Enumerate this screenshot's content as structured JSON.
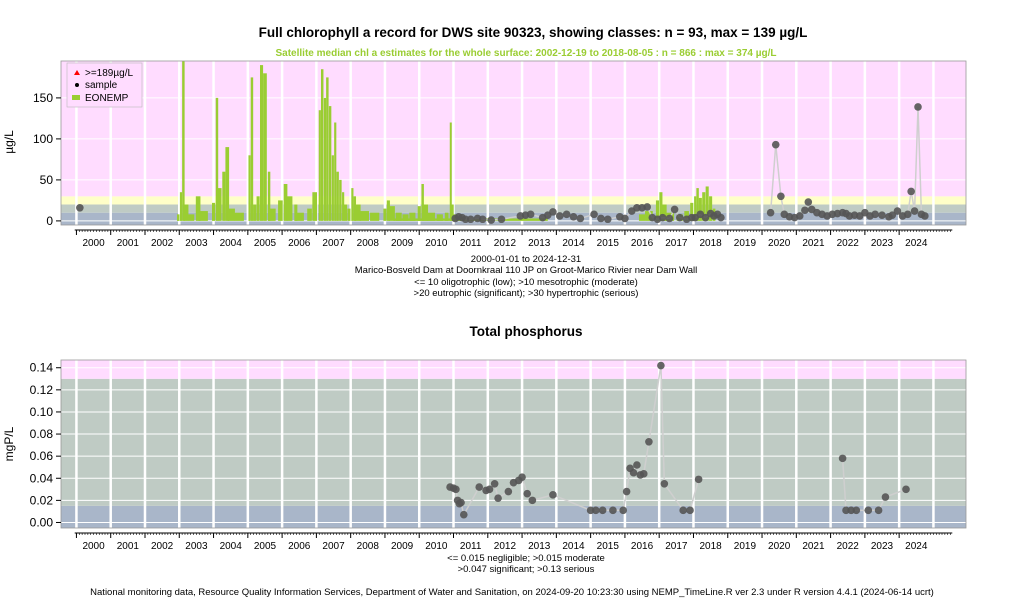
{
  "colors": {
    "hypertrophic": "#ffdcff",
    "eutrophic": "#ffffc8",
    "mesotrophic": "#bfcbc4",
    "oligotrophic": "#a9b6c9",
    "satellite": "#9acd32",
    "sample": "#555555",
    "sample_line": "#cfcfcf",
    "over_max": "#ff0000",
    "grid": "#ffffff"
  },
  "footer": "National monitoring data, Resource Quality Information Services, Department of Water and Sanitation, on 2024-09-20 10:23:30 using NEMP_TimeLine.R ver 2.3 under R version 4.4.1 (2024-06-14 ucrt)",
  "chart_data": [
    {
      "type": "scatter",
      "title": "Full chlorophyll a record for DWS site 90323, showing classes: n = 93, max = 139 µg/L",
      "subtitle": "Satellite median chl a estimates for the whole surface: 2002-12-19 to 2018-08-05 : n = 866 : max = 374 µg/L",
      "ylabel": "µg/L",
      "ylim": [
        -5,
        195
      ],
      "xlim": [
        1999.55,
        2025.95
      ],
      "yticks": [
        0,
        50,
        100,
        150
      ],
      "xticks": [
        "2000",
        "2001",
        "2002",
        "2003",
        "2004",
        "2005",
        "2006",
        "2007",
        "2008",
        "2009",
        "2010",
        "2011",
        "2012",
        "2013",
        "2014",
        "2015",
        "2016",
        "2017",
        "2018",
        "2019",
        "2020",
        "2021",
        "2022",
        "2023",
        "2024"
      ],
      "class_bands": [
        {
          "from": -5,
          "to": 10,
          "class": "oligotrophic"
        },
        {
          "from": 10,
          "to": 20,
          "class": "mesotrophic"
        },
        {
          "from": 20,
          "to": 30,
          "class": "eutrophic"
        },
        {
          "from": 30,
          "to": 195,
          "class": "hypertrophic"
        }
      ],
      "legend": {
        "position": "top-left",
        "entries": [
          ">=189µg/L",
          "sample",
          "EONEMP"
        ]
      },
      "notes": [
        "2000-01-01 to 2024-12-31",
        "Marico-Bosveld Dam at Doornkraal 110 JP on Groot-Marico Rivier near Dam Wall",
        "<= 10 oligotrophic (low); >10 mesotrophic (moderate)",
        ">20 eutrophic (significant); >30 hypertrophic (serious)"
      ],
      "satellite_peaks": [
        {
          "x": 2002.97,
          "y": 8
        },
        {
          "x": 2003.05,
          "y": 35
        },
        {
          "x": 2003.12,
          "y": 195
        },
        {
          "x": 2003.2,
          "y": 20
        },
        {
          "x": 2003.35,
          "y": 8
        },
        {
          "x": 2003.55,
          "y": 30
        },
        {
          "x": 2003.7,
          "y": 12
        },
        {
          "x": 2004.0,
          "y": 22
        },
        {
          "x": 2004.1,
          "y": 150
        },
        {
          "x": 2004.18,
          "y": 40
        },
        {
          "x": 2004.3,
          "y": 60
        },
        {
          "x": 2004.4,
          "y": 90
        },
        {
          "x": 2004.52,
          "y": 15
        },
        {
          "x": 2004.75,
          "y": 10
        },
        {
          "x": 2005.05,
          "y": 80
        },
        {
          "x": 2005.12,
          "y": 175
        },
        {
          "x": 2005.2,
          "y": 20
        },
        {
          "x": 2005.3,
          "y": 30
        },
        {
          "x": 2005.4,
          "y": 190
        },
        {
          "x": 2005.5,
          "y": 180
        },
        {
          "x": 2005.62,
          "y": 60
        },
        {
          "x": 2005.7,
          "y": 15
        },
        {
          "x": 2005.95,
          "y": 25
        },
        {
          "x": 2006.1,
          "y": 45
        },
        {
          "x": 2006.22,
          "y": 30
        },
        {
          "x": 2006.4,
          "y": 20
        },
        {
          "x": 2006.5,
          "y": 10
        },
        {
          "x": 2006.8,
          "y": 15
        },
        {
          "x": 2006.95,
          "y": 35
        },
        {
          "x": 2007.1,
          "y": 135
        },
        {
          "x": 2007.17,
          "y": 185
        },
        {
          "x": 2007.25,
          "y": 150
        },
        {
          "x": 2007.32,
          "y": 175
        },
        {
          "x": 2007.4,
          "y": 140
        },
        {
          "x": 2007.48,
          "y": 80
        },
        {
          "x": 2007.55,
          "y": 120
        },
        {
          "x": 2007.62,
          "y": 60
        },
        {
          "x": 2007.7,
          "y": 50
        },
        {
          "x": 2007.78,
          "y": 35
        },
        {
          "x": 2007.85,
          "y": 20
        },
        {
          "x": 2007.95,
          "y": 15
        },
        {
          "x": 2008.05,
          "y": 40
        },
        {
          "x": 2008.12,
          "y": 30
        },
        {
          "x": 2008.2,
          "y": 20
        },
        {
          "x": 2008.4,
          "y": 12
        },
        {
          "x": 2008.7,
          "y": 10
        },
        {
          "x": 2009.0,
          "y": 15
        },
        {
          "x": 2009.1,
          "y": 25
        },
        {
          "x": 2009.2,
          "y": 18
        },
        {
          "x": 2009.4,
          "y": 10
        },
        {
          "x": 2009.6,
          "y": 8
        },
        {
          "x": 2009.8,
          "y": 10
        },
        {
          "x": 2010.0,
          "y": 18
        },
        {
          "x": 2010.1,
          "y": 45
        },
        {
          "x": 2010.18,
          "y": 20
        },
        {
          "x": 2010.35,
          "y": 10
        },
        {
          "x": 2010.6,
          "y": 8
        },
        {
          "x": 2010.8,
          "y": 10
        },
        {
          "x": 2010.92,
          "y": 120
        },
        {
          "x": 2010.97,
          "y": 20
        },
        {
          "x": 2011.05,
          "y": 8
        },
        {
          "x": 2011.2,
          "y": 5
        },
        {
          "x": 2011.5,
          "y": 3
        },
        {
          "x": 2016.5,
          "y": 8
        },
        {
          "x": 2016.7,
          "y": 12
        },
        {
          "x": 2016.95,
          "y": 25
        },
        {
          "x": 2017.05,
          "y": 35
        },
        {
          "x": 2017.15,
          "y": 20
        },
        {
          "x": 2017.3,
          "y": 10
        },
        {
          "x": 2017.6,
          "y": 8
        },
        {
          "x": 2017.8,
          "y": 12
        },
        {
          "x": 2017.95,
          "y": 22
        },
        {
          "x": 2018.05,
          "y": 30
        },
        {
          "x": 2018.12,
          "y": 40
        },
        {
          "x": 2018.2,
          "y": 28
        },
        {
          "x": 2018.3,
          "y": 35
        },
        {
          "x": 2018.4,
          "y": 42
        },
        {
          "x": 2018.5,
          "y": 30
        },
        {
          "x": 2018.6,
          "y": 15
        }
      ],
      "samples": [
        {
          "x": 2000.1,
          "y": 16
        },
        {
          "x": 2011.05,
          "y": 3
        },
        {
          "x": 2011.15,
          "y": 5
        },
        {
          "x": 2011.25,
          "y": 4
        },
        {
          "x": 2011.35,
          "y": 2
        },
        {
          "x": 2011.5,
          "y": 2
        },
        {
          "x": 2011.7,
          "y": 3
        },
        {
          "x": 2011.85,
          "y": 2
        },
        {
          "x": 2012.1,
          "y": 1
        },
        {
          "x": 2012.4,
          "y": 2
        },
        {
          "x": 2012.95,
          "y": 6
        },
        {
          "x": 2013.1,
          "y": 7
        },
        {
          "x": 2013.25,
          "y": 8
        },
        {
          "x": 2013.6,
          "y": 4
        },
        {
          "x": 2013.75,
          "y": 7
        },
        {
          "x": 2013.9,
          "y": 11
        },
        {
          "x": 2014.1,
          "y": 6
        },
        {
          "x": 2014.3,
          "y": 8
        },
        {
          "x": 2014.5,
          "y": 5
        },
        {
          "x": 2014.7,
          "y": 3
        },
        {
          "x": 2015.1,
          "y": 8
        },
        {
          "x": 2015.3,
          "y": 3
        },
        {
          "x": 2015.5,
          "y": 2
        },
        {
          "x": 2015.85,
          "y": 5
        },
        {
          "x": 2016.0,
          "y": 3
        },
        {
          "x": 2016.2,
          "y": 12
        },
        {
          "x": 2016.35,
          "y": 16
        },
        {
          "x": 2016.5,
          "y": 16
        },
        {
          "x": 2016.65,
          "y": 17
        },
        {
          "x": 2016.8,
          "y": 4
        },
        {
          "x": 2016.95,
          "y": 2
        },
        {
          "x": 2017.1,
          "y": 4
        },
        {
          "x": 2017.3,
          "y": 3
        },
        {
          "x": 2017.45,
          "y": 14
        },
        {
          "x": 2017.6,
          "y": 4
        },
        {
          "x": 2017.8,
          "y": 2
        },
        {
          "x": 2017.95,
          "y": 4
        },
        {
          "x": 2018.05,
          "y": 4
        },
        {
          "x": 2018.2,
          "y": 8
        },
        {
          "x": 2018.35,
          "y": 4
        },
        {
          "x": 2018.5,
          "y": 9
        },
        {
          "x": 2018.6,
          "y": 6
        },
        {
          "x": 2018.7,
          "y": 8
        },
        {
          "x": 2018.8,
          "y": 4
        },
        {
          "x": 2020.25,
          "y": 10
        },
        {
          "x": 2020.4,
          "y": 93
        },
        {
          "x": 2020.55,
          "y": 30
        },
        {
          "x": 2020.65,
          "y": 8
        },
        {
          "x": 2020.8,
          "y": 5
        },
        {
          "x": 2020.95,
          "y": 4
        },
        {
          "x": 2021.1,
          "y": 6
        },
        {
          "x": 2021.25,
          "y": 13
        },
        {
          "x": 2021.35,
          "y": 23
        },
        {
          "x": 2021.45,
          "y": 14
        },
        {
          "x": 2021.6,
          "y": 10
        },
        {
          "x": 2021.75,
          "y": 8
        },
        {
          "x": 2021.9,
          "y": 6
        },
        {
          "x": 2022.05,
          "y": 8
        },
        {
          "x": 2022.2,
          "y": 9
        },
        {
          "x": 2022.35,
          "y": 10
        },
        {
          "x": 2022.45,
          "y": 9
        },
        {
          "x": 2022.55,
          "y": 6
        },
        {
          "x": 2022.7,
          "y": 7
        },
        {
          "x": 2022.85,
          "y": 6
        },
        {
          "x": 2023.0,
          "y": 10
        },
        {
          "x": 2023.15,
          "y": 6
        },
        {
          "x": 2023.3,
          "y": 8
        },
        {
          "x": 2023.5,
          "y": 7
        },
        {
          "x": 2023.7,
          "y": 5
        },
        {
          "x": 2023.8,
          "y": 7
        },
        {
          "x": 2023.95,
          "y": 12
        },
        {
          "x": 2024.1,
          "y": 6
        },
        {
          "x": 2024.25,
          "y": 8
        },
        {
          "x": 2024.35,
          "y": 36
        },
        {
          "x": 2024.45,
          "y": 12
        },
        {
          "x": 2024.55,
          "y": 139
        },
        {
          "x": 2024.65,
          "y": 8
        },
        {
          "x": 2024.75,
          "y": 6
        }
      ]
    },
    {
      "type": "scatter",
      "title": "Total phosphorus",
      "ylabel": "mgP/L",
      "ylim": [
        -0.005,
        0.147
      ],
      "xlim": [
        1999.55,
        2025.95
      ],
      "yticks": [
        "0.00",
        "0.02",
        "0.04",
        "0.06",
        "0.08",
        "0.10",
        "0.12",
        "0.14"
      ],
      "xticks": [
        "2000",
        "2001",
        "2002",
        "2003",
        "2004",
        "2005",
        "2006",
        "2007",
        "2008",
        "2009",
        "2010",
        "2011",
        "2012",
        "2013",
        "2014",
        "2015",
        "2016",
        "2017",
        "2018",
        "2019",
        "2020",
        "2021",
        "2022",
        "2023",
        "2024"
      ],
      "class_bands": [
        {
          "from": -0.005,
          "to": 0.015,
          "class": "oligotrophic"
        },
        {
          "from": 0.015,
          "to": 0.13,
          "class": "mesotrophic"
        },
        {
          "from": 0.13,
          "to": 0.147,
          "class": "hypertrophic"
        }
      ],
      "notes": [
        "<= 0.015 negligible; >0.015 moderate",
        ">0.047 significant; >0.13 serious"
      ],
      "samples": [
        {
          "x": 2010.9,
          "y": 0.032
        },
        {
          "x": 2011.0,
          "y": 0.031
        },
        {
          "x": 2011.07,
          "y": 0.03
        },
        {
          "x": 2011.12,
          "y": 0.02
        },
        {
          "x": 2011.17,
          "y": 0.017
        },
        {
          "x": 2011.22,
          "y": 0.018
        },
        {
          "x": 2011.3,
          "y": 0.007
        },
        {
          "x": 2011.75,
          "y": 0.032
        },
        {
          "x": 2011.95,
          "y": 0.029
        },
        {
          "x": 2012.05,
          "y": 0.03
        },
        {
          "x": 2012.2,
          "y": 0.035
        },
        {
          "x": 2012.3,
          "y": 0.022
        },
        {
          "x": 2012.6,
          "y": 0.028
        },
        {
          "x": 2012.75,
          "y": 0.036
        },
        {
          "x": 2012.9,
          "y": 0.038
        },
        {
          "x": 2013.0,
          "y": 0.041
        },
        {
          "x": 2013.15,
          "y": 0.026
        },
        {
          "x": 2013.3,
          "y": 0.02
        },
        {
          "x": 2013.9,
          "y": 0.025
        },
        {
          "x": 2015.0,
          "y": 0.011
        },
        {
          "x": 2015.15,
          "y": 0.011
        },
        {
          "x": 2015.35,
          "y": 0.011
        },
        {
          "x": 2015.65,
          "y": 0.011
        },
        {
          "x": 2015.95,
          "y": 0.011
        },
        {
          "x": 2016.05,
          "y": 0.028
        },
        {
          "x": 2016.15,
          "y": 0.049
        },
        {
          "x": 2016.25,
          "y": 0.045
        },
        {
          "x": 2016.35,
          "y": 0.052
        },
        {
          "x": 2016.45,
          "y": 0.043
        },
        {
          "x": 2016.55,
          "y": 0.044
        },
        {
          "x": 2016.7,
          "y": 0.073
        },
        {
          "x": 2017.05,
          "y": 0.142
        },
        {
          "x": 2017.15,
          "y": 0.035
        },
        {
          "x": 2017.7,
          "y": 0.011
        },
        {
          "x": 2017.9,
          "y": 0.011
        },
        {
          "x": 2018.15,
          "y": 0.039
        },
        {
          "x": 2022.35,
          "y": 0.058
        },
        {
          "x": 2022.45,
          "y": 0.011
        },
        {
          "x": 2022.6,
          "y": 0.011
        },
        {
          "x": 2022.75,
          "y": 0.011
        },
        {
          "x": 2023.1,
          "y": 0.011
        },
        {
          "x": 2023.4,
          "y": 0.011
        },
        {
          "x": 2023.6,
          "y": 0.023
        },
        {
          "x": 2024.2,
          "y": 0.03
        }
      ]
    }
  ]
}
